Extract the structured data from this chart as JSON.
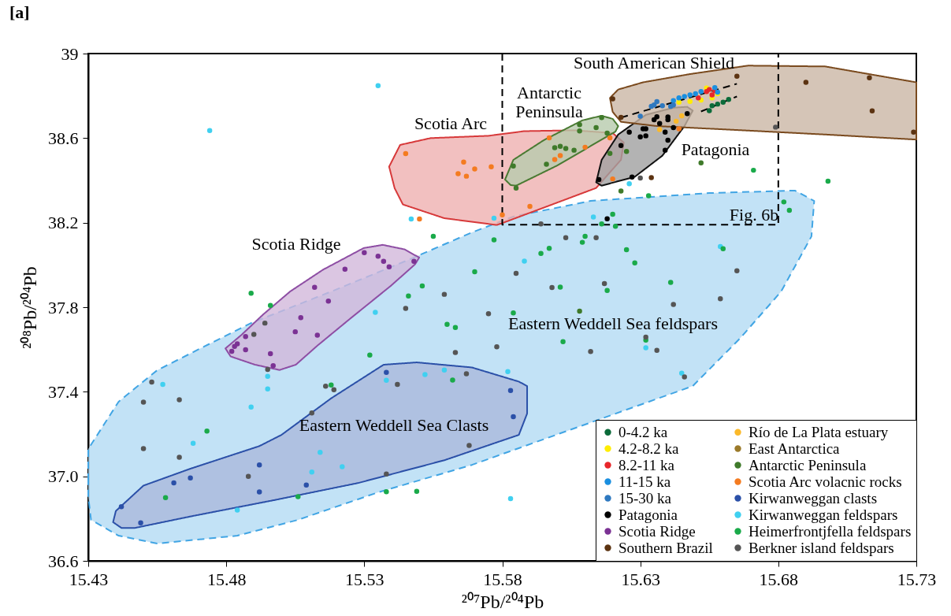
{
  "chart_data": {
    "type": "scatter",
    "title": "[a]",
    "xlabel": "²⁰⁷Pb/²⁰⁴Pb",
    "ylabel": "²⁰⁸Pb/²⁰⁴Pb",
    "xlim": [
      15.43,
      15.73
    ],
    "xticks": [
      15.43,
      15.48,
      15.53,
      15.58,
      15.63,
      15.68,
      15.73
    ],
    "ylim": [
      36.6,
      39
    ],
    "yticks": [
      36.6,
      {
        "value": 37,
        "label": "37.0"
      },
      37.4,
      37.8,
      38.2,
      38.6,
      {
        "value": 39,
        "label": "39"
      }
    ],
    "legend": "bottom right",
    "annotations": [
      "Scotia Arc",
      "Antarctic\nPeninsula",
      "South American Shield",
      "Patagonia",
      "Scotia Ridge",
      "Eastern Weddell Sea feldspars",
      "Eastern Weddell Sea Clasts",
      "Fig. 6b"
    ],
    "series": [
      {
        "type": "area",
        "color": "#41a5e4",
        "line_style": "dashed",
        "x": [
          15.43,
          15.43,
          15.441,
          15.455,
          15.472,
          15.489,
          15.518,
          15.546,
          15.569,
          15.584,
          15.612,
          15.655,
          15.686,
          15.693,
          15.692,
          15.681,
          15.666,
          15.649,
          null,
          null,
          15.569,
          15.535,
          15.506,
          15.484,
          15.455,
          15.441,
          15.431,
          15.43
        ],
        "values": [
          36.98,
          37.129,
          37.353,
          37.502,
          37.614,
          37.725,
          37.874,
          38.024,
          38.154,
          38.229,
          38.303,
          38.34,
          38.352,
          38.303,
          38.135,
          37.874,
          37.651,
          37.427,
          null,
          null,
          37.054,
          36.924,
          36.794,
          36.719,
          36.682,
          36.719,
          36.794,
          36.905
        ]
      },
      {
        "type": "area",
        "color": "#2b50a8",
        "line_style": "solid",
        "x": [
          15.439,
          15.44,
          15.45,
          15.467,
          15.492,
          15.5,
          15.518,
          15.537,
          15.549,
          15.569,
          15.586,
          15.589,
          15.589,
          15.586,
          15.559,
          15.528,
          15.498,
          15.467,
          15.447,
          15.442
        ],
        "values": [
          36.783,
          36.836,
          36.956,
          37.036,
          37.143,
          37.196,
          37.369,
          37.528,
          37.539,
          37.515,
          37.448,
          37.427,
          37.297,
          37.196,
          37.076,
          36.969,
          36.889,
          36.81,
          36.756,
          36.756
        ]
      },
      {
        "type": "area",
        "color": "#8e4ea4",
        "line_style": "solid",
        "x": [
          15.4797,
          15.4855,
          15.4934,
          15.5032,
          15.515,
          15.5298,
          15.5367,
          15.5445,
          15.5499,
          15.5484,
          15.5396,
          15.5249,
          15.513,
          15.5052,
          15.4993,
          15.4904,
          15.4816
        ],
        "values": [
          37.605,
          37.669,
          37.766,
          37.875,
          37.977,
          38.08,
          38.095,
          38.074,
          38.035,
          38.003,
          37.901,
          37.746,
          37.618,
          37.528,
          37.503,
          37.528,
          37.567
        ]
      },
      {
        "type": "area",
        "color": "#d7393a",
        "line_style": "solid",
        "x": [
          15.539,
          15.543,
          15.554,
          15.575,
          15.588,
          15.606,
          15.62,
          15.624,
          15.623,
          15.614,
          15.595,
          15.58,
          15.578,
          15.559,
          15.544,
          15.541
        ],
        "values": [
          38.465,
          38.568,
          38.6,
          38.611,
          38.633,
          38.637,
          38.624,
          38.579,
          38.497,
          38.364,
          38.271,
          38.198,
          38.189,
          38.221,
          38.286,
          38.363
        ]
      },
      {
        "type": "area",
        "color": "#4a7a32",
        "line_style": "solid",
        "x": [
          15.581,
          15.583,
          15.585,
          15.6,
          15.621,
          15.622,
          15.62,
          15.616,
          15.609,
          15.595,
          15.584
        ],
        "values": [
          38.404,
          38.378,
          38.375,
          38.471,
          38.631,
          38.657,
          38.691,
          38.706,
          38.684,
          38.59,
          38.497
        ]
      },
      {
        "type": "area",
        "color": "#111111",
        "line_style": "solid",
        "x": [
          15.614,
          15.616,
          15.628,
          15.638,
          15.646,
          15.649,
          15.647,
          15.642,
          15.632,
          15.622,
          15.616
        ],
        "values": [
          38.391,
          38.375,
          38.417,
          38.517,
          38.657,
          38.73,
          38.748,
          38.744,
          38.71,
          38.617,
          38.497
        ]
      },
      {
        "type": "area",
        "color": "#7a4a1e",
        "line_style": "solid",
        "x": [
          15.619,
          15.622,
          15.631,
          15.648,
          15.669,
          15.697,
          15.73,
          15.73,
          15.697,
          15.667,
          15.636,
          15.623,
          15.62
        ],
        "values": [
          38.79,
          38.83,
          38.864,
          38.903,
          38.943,
          38.939,
          38.864,
          38.593,
          38.617,
          38.637,
          38.657,
          38.677,
          38.724
        ]
      },
      {
        "type": "line",
        "color": "#000000",
        "line_style": "dashed",
        "x": [
          15.58,
          15.58,
          15.68,
          15.68
        ],
        "values": [
          39,
          38.19,
          38.19,
          39
        ]
      },
      {
        "type": "line",
        "color": "#000000",
        "line_style": "dashed",
        "x": [
          15.623,
          15.665
        ],
        "values": [
          38.697,
          38.857
        ]
      },
      {
        "type": "line",
        "color": "#000000",
        "line_style": "dashed",
        "x": [
          15.652,
          15.665
        ],
        "values": [
          38.726,
          38.797
        ]
      },
      {
        "name": "0-4.2 ka",
        "color": "#0b6b3a",
        "marker": "circle",
        "x": [
          15.655,
          15.656,
          15.658,
          15.66,
          15.662
        ],
        "values": [
          38.73,
          38.753,
          38.761,
          38.77,
          38.783
        ]
      },
      {
        "name": "4.2-8.2 ka",
        "color": "#ffed00",
        "marker": "circle",
        "x": [
          15.644,
          15.648,
          15.652,
          15.654,
          15.656,
          15.658
        ],
        "values": [
          38.77,
          38.774,
          38.78,
          38.837,
          38.79,
          38.81
        ]
      },
      {
        "name": "8.2-11 ka",
        "color": "#e8262a",
        "marker": "circle",
        "x": [
          15.651,
          15.654,
          15.656,
          15.657,
          15.655
        ],
        "values": [
          38.79,
          38.82,
          38.804,
          38.824,
          38.83
        ]
      },
      {
        "name": "11-15 ka",
        "color": "#1a8fe0",
        "marker": "circle",
        "x": [
          15.642,
          15.644,
          15.646,
          15.648,
          15.65,
          15.652,
          15.657,
          15.658
        ],
        "values": [
          38.777,
          38.79,
          38.797,
          38.804,
          38.81,
          38.82,
          38.839,
          38.817
        ]
      },
      {
        "name": "15-30 ka",
        "color": "#2f79c0",
        "marker": "circle",
        "x": [
          15.63,
          15.634,
          15.635,
          15.636,
          15.638,
          15.641,
          15.642
        ],
        "values": [
          38.704,
          38.75,
          38.757,
          38.773,
          38.753,
          38.75,
          38.757
        ]
      },
      {
        "name": "Patagonia",
        "color": "#000000",
        "marker": "circle",
        "x": [
          15.615,
          15.627,
          15.623,
          15.626,
          15.63,
          15.632,
          15.631,
          15.632,
          15.635,
          15.637,
          15.636,
          15.64,
          15.64,
          15.642,
          15.647,
          15.639,
          15.64,
          15.639,
          15.618
        ],
        "values": [
          38.404,
          38.416,
          38.565,
          38.628,
          38.606,
          38.611,
          38.644,
          38.644,
          38.687,
          38.669,
          38.701,
          38.7,
          38.687,
          38.65,
          38.716,
          38.628,
          38.59,
          38.543,
          38.218
        ]
      },
      {
        "name": "Scotia Ridge",
        "color": "#7b3294",
        "marker": "circle",
        "x": [
          15.53,
          15.535,
          15.537,
          15.539,
          15.548,
          15.523,
          15.512,
          15.517,
          15.507,
          15.505,
          15.513,
          15.487,
          15.484,
          15.483,
          15.482,
          15.487,
          15.496,
          15.497
        ],
        "values": [
          38.058,
          38.041,
          38.017,
          37.991,
          38.017,
          37.98,
          37.894,
          37.829,
          37.751,
          37.684,
          37.668,
          37.661,
          37.627,
          37.615,
          37.591,
          37.599,
          37.58,
          37.523
        ]
      },
      {
        "name": "Southern Brazil",
        "color": "#5c3311",
        "marker": "circle",
        "x": [
          15.62,
          15.623,
          15.665,
          15.69,
          15.713,
          15.714,
          15.729,
          15.634
        ],
        "values": [
          38.786,
          38.698,
          38.893,
          38.864,
          38.885,
          38.729,
          38.628,
          38.413
        ]
      },
      {
        "name": "Río de La Plata estuary",
        "color": "#fbb92a",
        "marker": "circle",
        "x": [
          15.645,
          15.643,
          15.637
        ],
        "values": [
          38.706,
          38.68,
          38.64
        ]
      },
      {
        "name": "East Antarctica",
        "color": "#9b7a2a",
        "marker": "circle"
      },
      {
        "name": "Antarctic Peninsula",
        "color": "#3f7a2a",
        "marker": "circle",
        "x": [
          15.584,
          15.585,
          15.596,
          15.599,
          15.601,
          15.603,
          15.606,
          15.608,
          15.608,
          15.616,
          15.614,
          15.618,
          15.619,
          15.625,
          15.623,
          15.652,
          15.608
        ],
        "values": [
          38.468,
          38.364,
          38.476,
          38.555,
          38.561,
          38.551,
          38.543,
          38.664,
          38.634,
          38.697,
          38.65,
          38.624,
          38.528,
          38.537,
          38.35,
          38.483,
          37.781
        ]
      },
      {
        "name": "Scotia Arc volacnic rocks",
        "color": "#f47b20",
        "marker": "circle",
        "x": [
          15.545,
          15.566,
          15.564,
          15.567,
          15.57,
          15.576,
          15.55,
          15.58,
          15.597,
          15.619,
          15.61,
          15.601,
          15.599,
          15.59,
          15.62,
          15.644
        ],
        "values": [
          38.527,
          38.487,
          38.432,
          38.42,
          38.454,
          38.464,
          38.217,
          38.237,
          38.601,
          38.601,
          38.557,
          38.517,
          38.499,
          38.277,
          38.407,
          38.644
        ]
      },
      {
        "name": "Kirwanweggan clasts",
        "color": "#2b50a8",
        "marker": "circle",
        "x": [
          15.442,
          15.449,
          15.461,
          15.467,
          15.492,
          15.492,
          15.509,
          15.538,
          15.583,
          15.584
        ],
        "values": [
          36.856,
          36.78,
          36.969,
          36.992,
          37.054,
          36.926,
          36.959,
          37.492,
          37.406,
          37.282
        ]
      },
      {
        "name": "Kirwanweggan feldspars",
        "color": "#40d0f0",
        "marker": "circle",
        "x": [
          15.535,
          15.474,
          15.547,
          15.577,
          15.534,
          15.495,
          15.495,
          15.457,
          15.538,
          15.552,
          15.559,
          15.489,
          15.468,
          15.514,
          15.511,
          15.522,
          15.484,
          15.583,
          15.582,
          15.613,
          15.626,
          15.588,
          15.659,
          15.632,
          15.645
        ],
        "values": [
          38.848,
          38.636,
          38.217,
          38.221,
          37.776,
          37.473,
          37.413,
          37.435,
          37.454,
          37.481,
          37.503,
          37.328,
          37.156,
          37.113,
          37.02,
          37.045,
          36.84,
          36.894,
          37.495,
          38.227,
          38.384,
          38.018,
          38.087,
          37.608,
          37.488
        ]
      },
      {
        "name": "Heimerfrontjfella feldspars",
        "color": "#1aaa4a",
        "marker": "circle",
        "x": [
          15.489,
          15.496,
          15.555,
          15.577,
          15.57,
          15.551,
          15.546,
          15.56,
          15.563,
          15.532,
          15.518,
          15.562,
          15.473,
          15.458,
          15.506,
          15.538,
          15.549,
          15.633,
          15.671,
          15.698,
          15.682,
          15.684,
          15.62,
          15.621,
          15.616,
          15.61,
          15.609,
          15.597,
          15.594,
          15.625,
          15.628,
          15.641,
          15.66,
          15.601,
          15.618,
          15.602,
          15.632,
          15.584
        ],
        "values": [
          37.866,
          37.808,
          38.135,
          38.119,
          37.968,
          37.901,
          37.853,
          37.719,
          37.704,
          37.574,
          37.432,
          37.455,
          37.214,
          36.899,
          36.904,
          36.927,
          36.929,
          38.327,
          38.448,
          38.396,
          38.298,
          38.258,
          38.24,
          38.183,
          38.194,
          38.135,
          38.107,
          38.079,
          38.054,
          38.072,
          38.01,
          37.917,
          38.077,
          37.895,
          37.879,
          37.637,
          37.644,
          37.773
        ]
      },
      {
        "name": "Berkner island feldspars",
        "color": "#555555",
        "marker": "circle",
        "x": [
          15.559,
          15.545,
          15.575,
          15.578,
          15.563,
          15.494,
          15.49,
          15.495,
          15.567,
          15.542,
          15.516,
          15.519,
          15.453,
          15.45,
          15.463,
          15.45,
          15.463,
          15.488,
          15.511,
          15.538,
          15.568,
          15.594,
          15.679,
          15.63,
          15.603,
          15.614,
          15.585,
          15.598,
          15.617,
          15.665,
          15.642,
          15.659,
          15.612,
          15.636,
          15.632,
          15.646
        ],
        "values": [
          37.861,
          37.794,
          37.769,
          37.613,
          37.586,
          37.725,
          37.671,
          37.506,
          37.485,
          37.435,
          37.426,
          37.41,
          37.446,
          37.351,
          37.362,
          37.131,
          37.09,
          37.0,
          37.3,
          37.011,
          37.146,
          38.194,
          38.652,
          38.411,
          38.129,
          38.129,
          37.96,
          37.893,
          37.912,
          37.972,
          37.813,
          37.84,
          37.59,
          37.596,
          37.658,
          37.47
        ]
      }
    ]
  }
}
